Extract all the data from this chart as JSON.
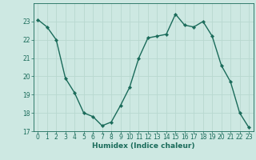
{
  "xlabel": "Humidex (Indice chaleur)",
  "ylabel": "",
  "x": [
    0,
    1,
    2,
    3,
    4,
    5,
    6,
    7,
    8,
    9,
    10,
    11,
    12,
    13,
    14,
    15,
    16,
    17,
    18,
    19,
    20,
    21,
    22,
    23
  ],
  "y": [
    23.1,
    22.7,
    22.0,
    19.9,
    19.1,
    18.0,
    17.8,
    17.3,
    17.5,
    18.4,
    19.4,
    21.0,
    22.1,
    22.2,
    22.3,
    23.4,
    22.8,
    22.7,
    23.0,
    22.2,
    20.6,
    19.7,
    18.0,
    17.2
  ],
  "line_color": "#1a6b5a",
  "bg_color": "#cde8e2",
  "grid_color": "#b8d8d0",
  "tick_color": "#1a6b5a",
  "label_color": "#1a6b5a",
  "ylim": [
    17,
    24
  ],
  "xlim": [
    -0.5,
    23.5
  ],
  "yticks": [
    17,
    18,
    19,
    20,
    21,
    22,
    23
  ],
  "xticks": [
    0,
    1,
    2,
    3,
    4,
    5,
    6,
    7,
    8,
    9,
    10,
    11,
    12,
    13,
    14,
    15,
    16,
    17,
    18,
    19,
    20,
    21,
    22,
    23
  ],
  "marker": "D",
  "marker_size": 2.2,
  "line_width": 1.0,
  "label_fontsize": 6.5,
  "tick_fontsize": 5.5
}
